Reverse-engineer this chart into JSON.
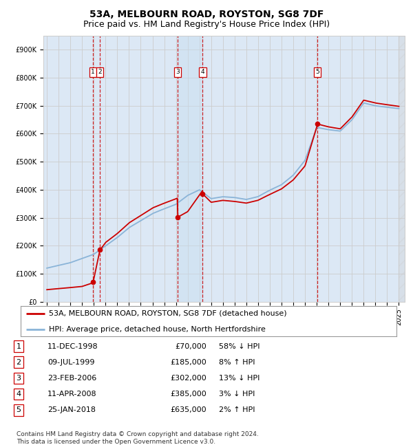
{
  "title": "53A, MELBOURN ROAD, ROYSTON, SG8 7DF",
  "subtitle": "Price paid vs. HM Land Registry's House Price Index (HPI)",
  "ylim": [
    0,
    950000
  ],
  "yticks": [
    0,
    100000,
    200000,
    300000,
    400000,
    500000,
    600000,
    700000,
    800000,
    900000
  ],
  "ytick_labels": [
    "£0",
    "£100K",
    "£200K",
    "£300K",
    "£400K",
    "£500K",
    "£600K",
    "£700K",
    "£800K",
    "£900K"
  ],
  "xlim_start": 1994.7,
  "xlim_end": 2025.5,
  "hpi_color": "#8ab4d8",
  "price_color": "#cc0000",
  "grid_color": "#cccccc",
  "bg_color": "#ffffff",
  "plot_bg_color": "#dce8f5",
  "sale_dates_x": [
    1998.94,
    1999.52,
    2006.15,
    2008.28,
    2018.07
  ],
  "sale_prices_y": [
    70000,
    185000,
    302000,
    385000,
    635000
  ],
  "sale_labels": [
    "1",
    "2",
    "3",
    "4",
    "5"
  ],
  "vline_pairs": [
    [
      1998.94,
      1999.52
    ],
    [
      2006.15,
      2008.28
    ]
  ],
  "single_vlines": [
    2018.07
  ],
  "shaded_pairs": [
    [
      2006.15,
      2008.28
    ]
  ],
  "legend_entries": [
    "53A, MELBOURN ROAD, ROYSTON, SG8 7DF (detached house)",
    "HPI: Average price, detached house, North Hertfordshire"
  ],
  "table_rows": [
    {
      "num": "1",
      "date": "11-DEC-1998",
      "price": "£70,000",
      "hpi": "58% ↓ HPI"
    },
    {
      "num": "2",
      "date": "09-JUL-1999",
      "price": "£185,000",
      "hpi": "8% ↑ HPI"
    },
    {
      "num": "3",
      "date": "23-FEB-2006",
      "price": "£302,000",
      "hpi": "13% ↓ HPI"
    },
    {
      "num": "4",
      "date": "11-APR-2008",
      "price": "£385,000",
      "hpi": "3% ↓ HPI"
    },
    {
      "num": "5",
      "date": "25-JAN-2018",
      "price": "£635,000",
      "hpi": "2% ↑ HPI"
    }
  ],
  "footer": "Contains HM Land Registry data © Crown copyright and database right 2024.\nThis data is licensed under the Open Government Licence v3.0.",
  "title_fontsize": 10,
  "subtitle_fontsize": 9,
  "tick_fontsize": 7,
  "legend_fontsize": 8,
  "table_fontsize": 8,
  "footer_fontsize": 6.5,
  "hpi_waypoints_x": [
    1995,
    1996,
    1997,
    1998,
    1999,
    2000,
    2001,
    2002,
    2003,
    2004,
    2005,
    2006,
    2007,
    2008,
    2009,
    2010,
    2011,
    2012,
    2013,
    2014,
    2015,
    2016,
    2017,
    2018,
    2019,
    2020,
    2021,
    2022,
    2023,
    2024,
    2025
  ],
  "hpi_waypoints_y": [
    120000,
    130000,
    140000,
    155000,
    170000,
    200000,
    230000,
    265000,
    290000,
    315000,
    332000,
    348000,
    380000,
    400000,
    368000,
    375000,
    372000,
    365000,
    375000,
    398000,
    418000,
    452000,
    505000,
    623000,
    615000,
    610000,
    650000,
    710000,
    700000,
    695000,
    690000
  ],
  "price_waypoints_x": [
    1995.0,
    1998.0,
    1998.93,
    1998.94,
    1999.52,
    2000,
    2001,
    2002,
    2003,
    2004,
    2005,
    2006.14,
    2006.15,
    2007,
    2008.27,
    2008.28,
    2009,
    2010,
    2011,
    2012,
    2013,
    2014,
    2015,
    2016,
    2017,
    2018.06,
    2018.07,
    2019,
    2020,
    2021,
    2022,
    2023,
    2024,
    2025
  ],
  "price_waypoints_y": [
    43000,
    55000,
    68000,
    70000,
    185000,
    212000,
    244000,
    282000,
    308000,
    335000,
    352000,
    370000,
    302000,
    322000,
    397000,
    385000,
    355000,
    362000,
    358000,
    352000,
    362000,
    383000,
    403000,
    435000,
    485000,
    633000,
    635000,
    625000,
    618000,
    660000,
    720000,
    710000,
    704000,
    698000
  ]
}
